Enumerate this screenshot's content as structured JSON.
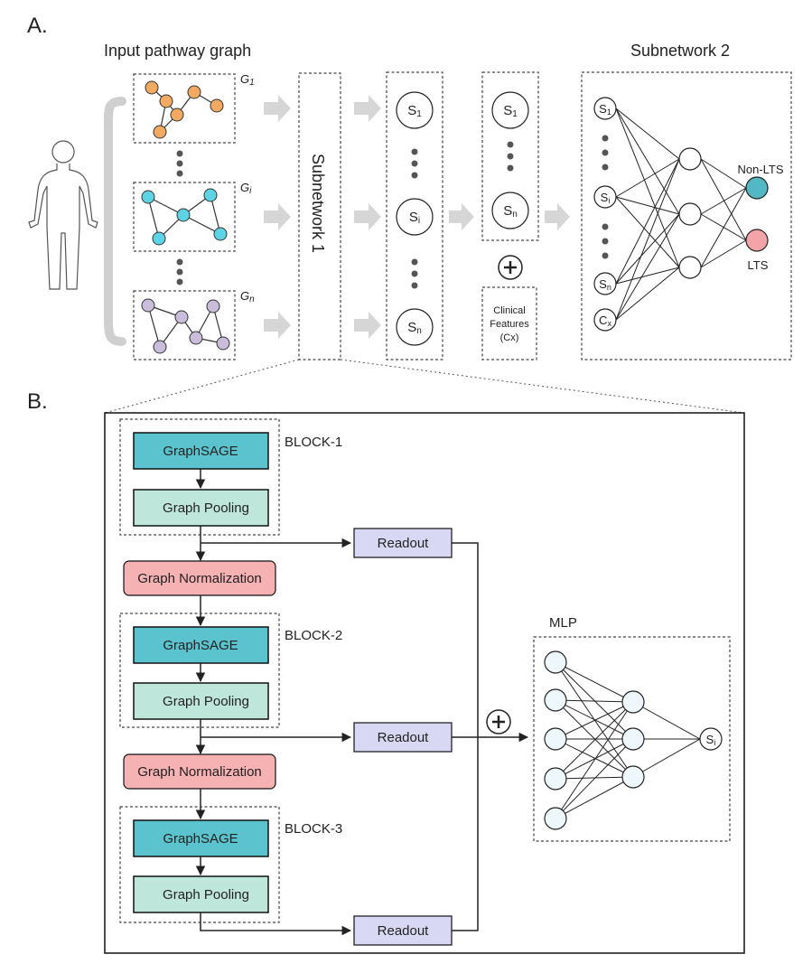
{
  "panel_a": {
    "label": "A.",
    "input_title": "Input pathway graph",
    "graph_labels": [
      "G1",
      "Gi",
      "Gn"
    ],
    "subnetwork1_label": "Subnetwork 1",
    "subnetwork2_title": "Subnetwork 2",
    "score_labels": [
      "S1",
      "Si",
      "Sn"
    ],
    "clinical_lines": [
      "Clinical",
      "Features",
      "(Cx)"
    ],
    "clinical_input": "Cx",
    "outputs": [
      {
        "label": "Non-LTS",
        "color": "#52b8c4"
      },
      {
        "label": "LTS",
        "color": "#f4a3a8"
      }
    ],
    "graph_colors": {
      "g1": "#f2aa63",
      "gi": "#5fd3e6",
      "gn": "#c9bddb"
    }
  },
  "panel_b": {
    "label": "B.",
    "blocks": [
      {
        "title": "BLOCK-1",
        "sage": "GraphSAGE",
        "pool": "Graph Pooling"
      },
      {
        "title": "BLOCK-2",
        "sage": "GraphSAGE",
        "pool": "Graph Pooling"
      },
      {
        "title": "BLOCK-3",
        "sage": "GraphSAGE",
        "pool": "Graph Pooling"
      }
    ],
    "normalization": "Graph Normalization",
    "readout": "Readout",
    "mlp_title": "MLP",
    "output_label": "Si",
    "colors": {
      "sage": "#5bc3cd",
      "pool": "#bfe6da",
      "norm": "#f6b1b3",
      "readout": "#d9d8f4",
      "mlp_node": "#eef7fb"
    }
  }
}
